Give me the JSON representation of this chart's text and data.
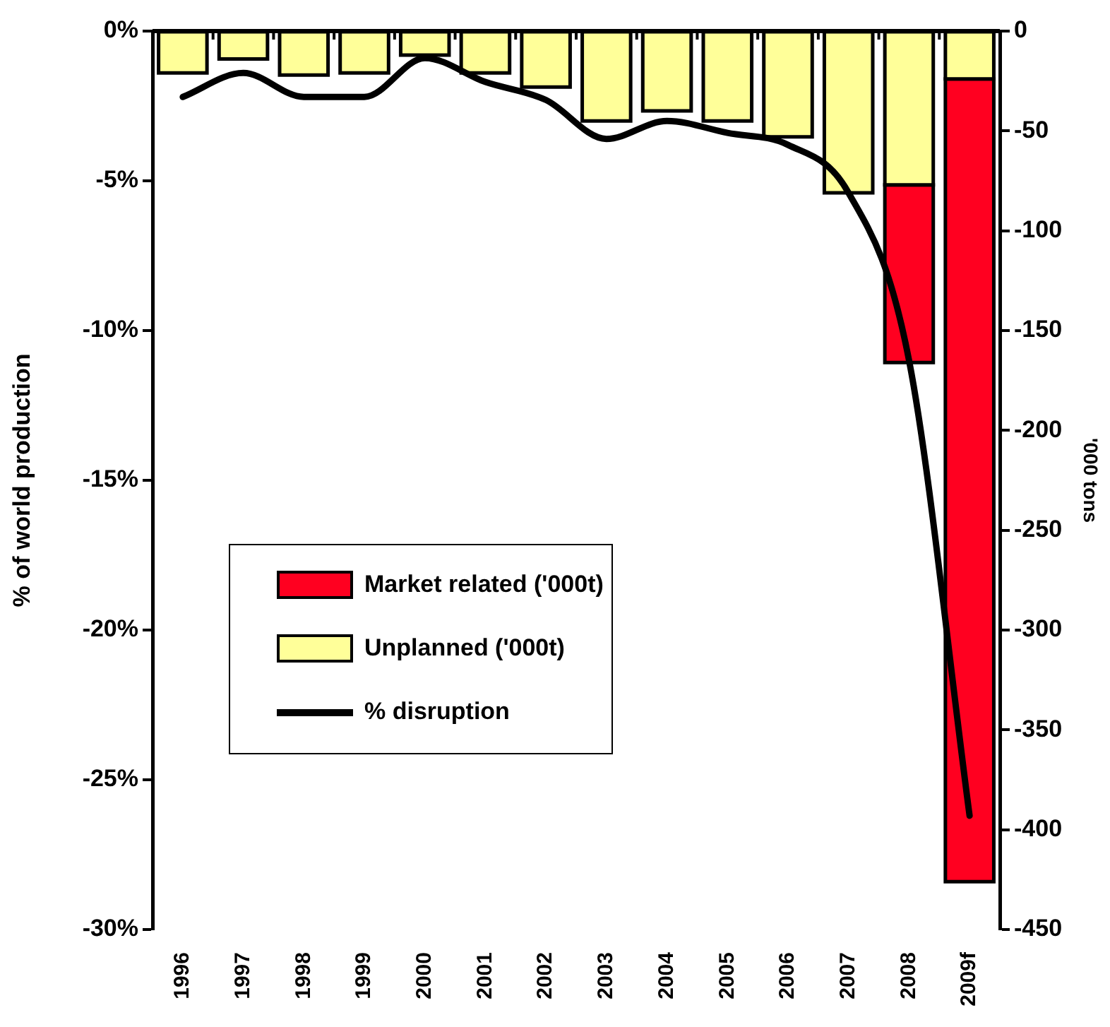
{
  "chart_data": {
    "type": "bar",
    "stacked": true,
    "categories": [
      "1996",
      "1997",
      "1998",
      "1999",
      "2000",
      "2001",
      "2002",
      "2003",
      "2004",
      "2005",
      "2006",
      "2007",
      "2008",
      "2009f"
    ],
    "series": [
      {
        "name": "Unplanned ('000t)",
        "color": "#ffff99",
        "axis": "y2",
        "values": [
          -21,
          -14,
          -22,
          -21,
          -12,
          -21,
          -28,
          -45,
          -40,
          -45,
          -53,
          -81,
          -77,
          -24
        ]
      },
      {
        "name": "Market related ('000t)",
        "color": "#ff0020",
        "axis": "y2",
        "values": [
          null,
          null,
          null,
          null,
          null,
          null,
          null,
          null,
          null,
          null,
          null,
          null,
          -89,
          -402
        ]
      },
      {
        "name": "% disruption",
        "type": "line",
        "color": "#000000",
        "values": [
          -2.2,
          -1.4,
          -2.2,
          -2.2,
          -0.9,
          -1.7,
          -2.3,
          -3.6,
          -3.0,
          -3.4,
          -3.8,
          -5.4,
          -11.0,
          -26.2
        ]
      }
    ],
    "ylabel": "% of world production",
    "y2label": "'000 tons",
    "ylim": [
      -30,
      0
    ],
    "yticks": [
      {
        "value": -30,
        "label": "-30%"
      },
      {
        "value": -25,
        "label": "-25%"
      },
      {
        "value": -20,
        "label": "-20%"
      },
      {
        "value": -15,
        "label": "-15%"
      },
      {
        "value": -10,
        "label": "-10%"
      },
      {
        "value": -5,
        "label": "-5%"
      },
      {
        "value": 0,
        "label": "0%"
      }
    ],
    "y2lim": [
      -450,
      0
    ],
    "y2ticks": [
      -450,
      -400,
      -350,
      -300,
      -250,
      -200,
      -150,
      -100,
      -50,
      0
    ],
    "legend": "bottom left"
  }
}
